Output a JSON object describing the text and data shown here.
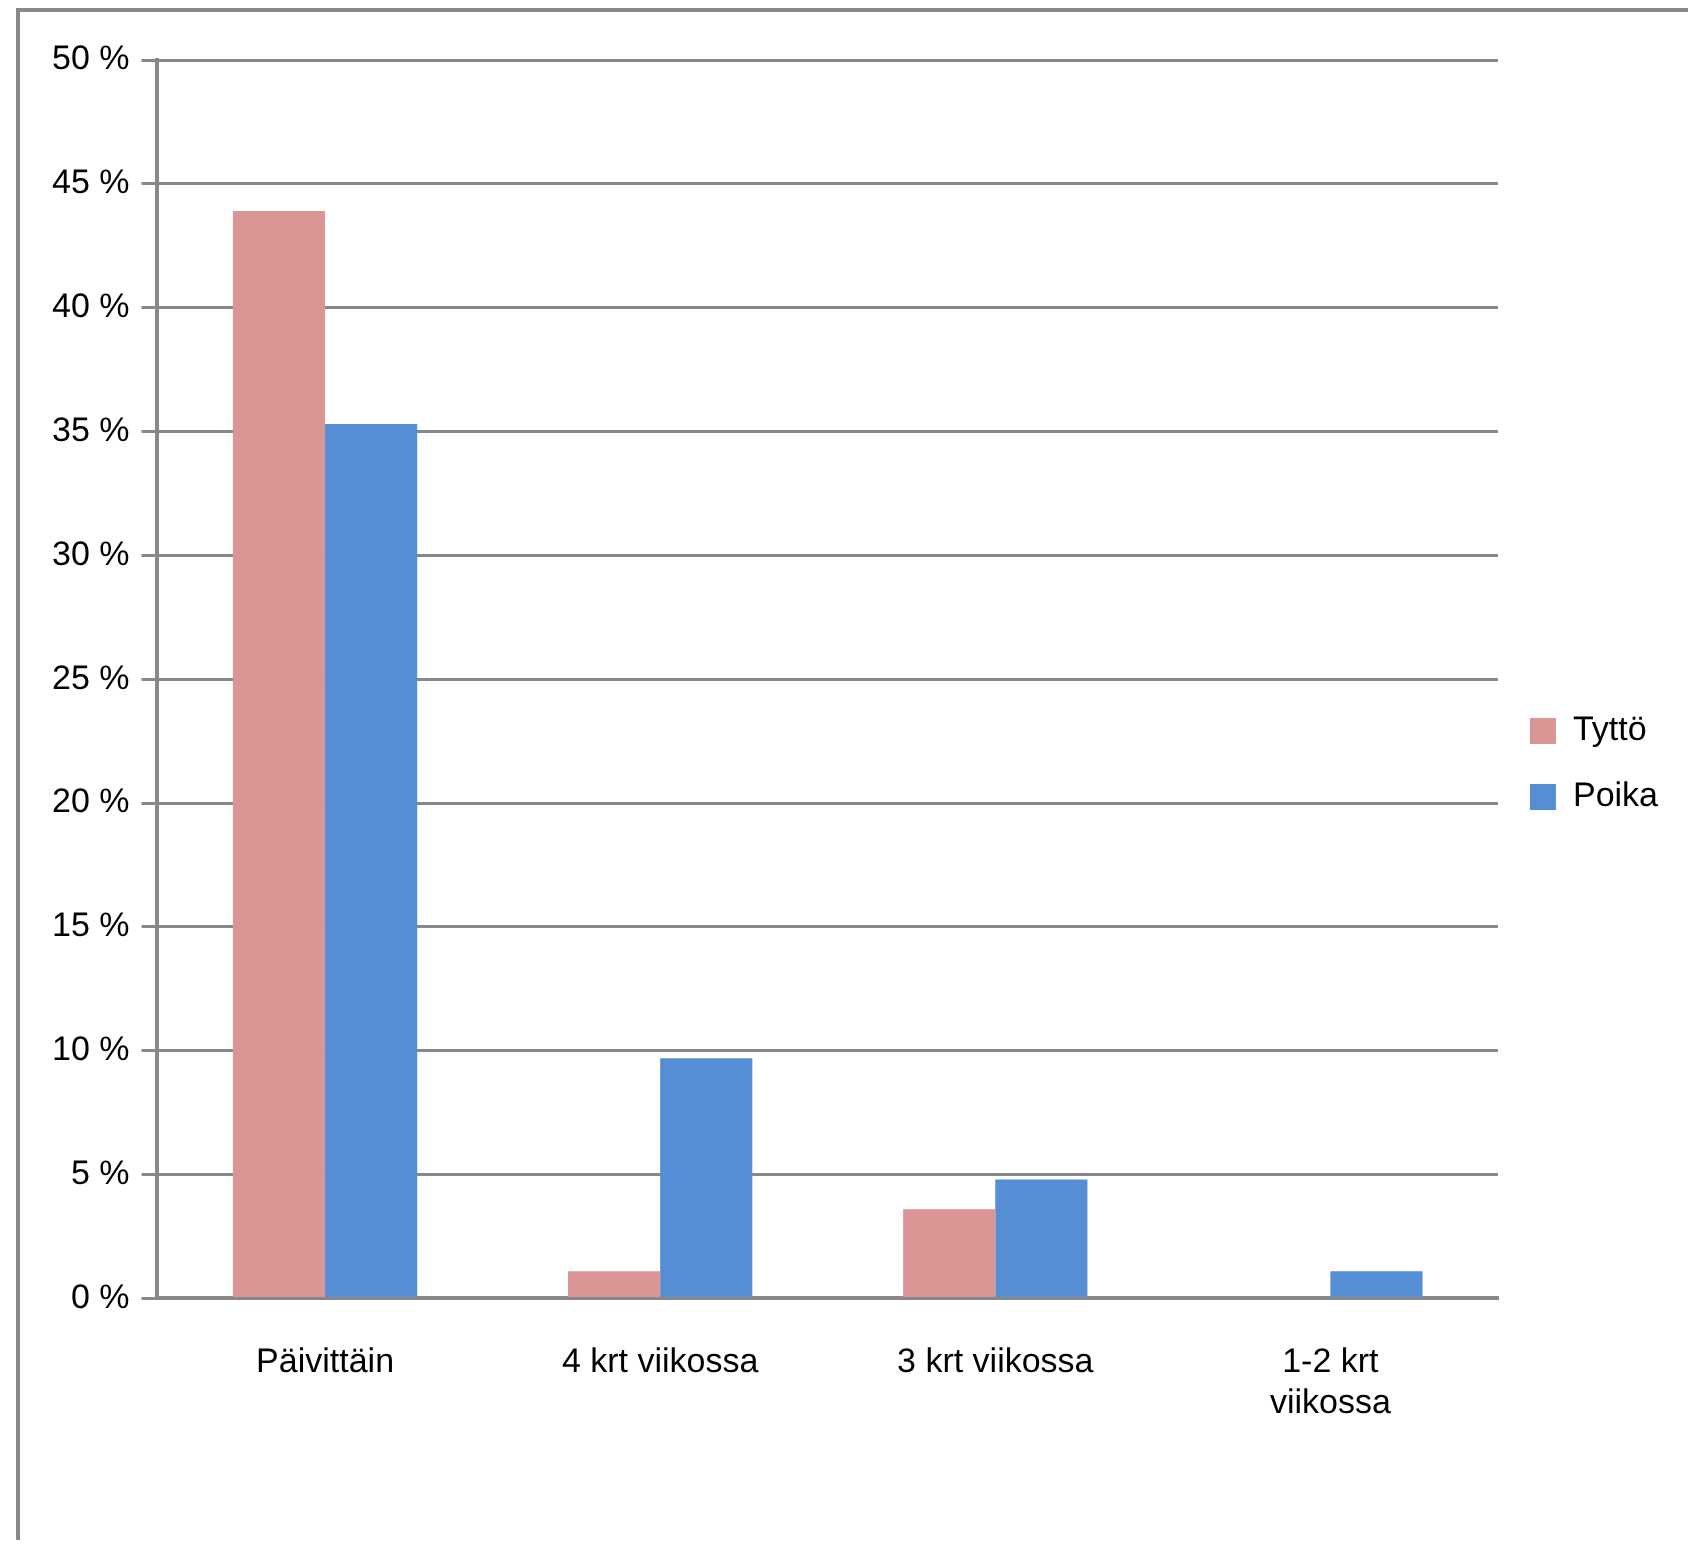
{
  "chart_data": {
    "type": "bar",
    "categories": [
      "Päivittäin",
      "4 krt viikossa",
      "3 krt viikossa",
      "1-2 krt viikossa"
    ],
    "series": [
      {
        "name": "Tyttö",
        "color": "#d99694",
        "values": [
          43.9,
          1.1,
          3.6,
          0
        ]
      },
      {
        "name": "Poika",
        "color": "#558ed5",
        "values": [
          35.3,
          9.7,
          4.8,
          1.1
        ]
      }
    ],
    "ylim": [
      0,
      50
    ],
    "yticks": [
      {
        "value": 0,
        "label": "0 %"
      },
      {
        "value": 5,
        "label": "5 %"
      },
      {
        "value": 10,
        "label": "10 %"
      },
      {
        "value": 15,
        "label": "15 %"
      },
      {
        "value": 20,
        "label": "20 %"
      },
      {
        "value": 25,
        "label": "25 %"
      },
      {
        "value": 30,
        "label": "30 %"
      },
      {
        "value": 35,
        "label": "35 %"
      },
      {
        "value": 40,
        "label": "40 %"
      },
      {
        "value": 45,
        "label": "45 %"
      },
      {
        "value": 50,
        "label": "50 %"
      }
    ],
    "grid": "y",
    "legend": "right"
  }
}
